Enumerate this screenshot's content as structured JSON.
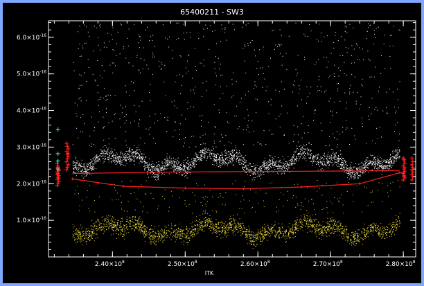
{
  "chart_data": {
    "type": "scatter",
    "title": "65400211 - SW3",
    "xlabel": "ITK",
    "ylabel": "",
    "xlim": [
      231200000.0,
      281700000.0
    ],
    "ylim": [
      0,
      6.45e-16
    ],
    "x_ticks": [
      {
        "value": 240000000.0,
        "mantissa": "2.40",
        "power": "8"
      },
      {
        "value": 250000000.0,
        "mantissa": "2.50",
        "power": "8"
      },
      {
        "value": 260000000.0,
        "mantissa": "2.60",
        "power": "8"
      },
      {
        "value": 270000000.0,
        "mantissa": "2.70",
        "power": "8"
      },
      {
        "value": 280000000.0,
        "mantissa": "2.80",
        "power": "8"
      }
    ],
    "y_ticks": [
      {
        "value": 1e-16,
        "mantissa": "1.0",
        "power": "-16"
      },
      {
        "value": 2e-16,
        "mantissa": "2.0",
        "power": "-16"
      },
      {
        "value": 3e-16,
        "mantissa": "3.0",
        "power": "-16"
      },
      {
        "value": 4e-16,
        "mantissa": "4.0",
        "power": "-16"
      },
      {
        "value": 5e-16,
        "mantissa": "5.0",
        "power": "-16"
      },
      {
        "value": 6e-16,
        "mantissa": "6.0",
        "power": "-16"
      }
    ],
    "colors": {
      "background": "#000000",
      "frame": "#7fa7ff",
      "white_series": "#ffffff",
      "yellow_series": "#f2e23a",
      "red": "#ff2020",
      "cyan": "#40e0d0"
    },
    "x_data_range": [
      234500000.0,
      279500000.0
    ],
    "white_band_center": 2.6e-16,
    "yellow_band_center": 7.5e-17,
    "series": [
      {
        "color": "red",
        "style": "line",
        "x": [
          234500000.0,
          242000000.0,
          250000000.0,
          258000000.0,
          266000000.0,
          274000000.0,
          279500000.0
        ],
        "y": [
          2.28e-16,
          2.3e-16,
          2.32e-16,
          2.33e-16,
          2.34e-16,
          2.35e-16,
          2.36e-16
        ]
      },
      {
        "color": "red",
        "style": "line+plus",
        "x": [
          234500000.0,
          241500000.0,
          250000000.0,
          258000000.0,
          266000000.0,
          274000000.0,
          279500000.0
        ],
        "y": [
          2.13e-16,
          1.93e-16,
          1.88e-16,
          1.86e-16,
          1.91e-16,
          2e-16,
          2.3e-16
        ]
      },
      {
        "color": "red",
        "style": "plus",
        "x": [
          232400000.0,
          232500000.0,
          232600000.0,
          232400000.0,
          232500000.0,
          232600000.0,
          232500000.0,
          232400000.0,
          232600000.0,
          232500000.0,
          232400000.0,
          232600000.0,
          232500000.0,
          232400000.0,
          232600000.0,
          232500000.0
        ],
        "y": [
          2.55e-16,
          2.45e-16,
          2.38e-16,
          2.32e-16,
          2.28e-16,
          2.22e-16,
          2.18e-16,
          2.12e-16,
          2.06e-16,
          2e-16,
          1.95e-16,
          2.35e-16,
          2.42e-16,
          2.26e-16,
          2.15e-16,
          2.48e-16
        ]
      },
      {
        "color": "red",
        "style": "plus",
        "x": [
          233700000.0,
          233800000.0,
          233900000.0,
          233700000.0,
          233800000.0,
          233900000.0,
          233800000.0,
          233700000.0,
          233900000.0,
          233800000.0,
          233700000.0,
          233900000.0
        ],
        "y": [
          3.1e-16,
          3.02e-16,
          2.95e-16,
          2.88e-16,
          2.8e-16,
          2.74e-16,
          2.68e-16,
          2.6e-16,
          2.52e-16,
          2.45e-16,
          2.38e-16,
          2.83e-16
        ]
      },
      {
        "color": "red",
        "style": "plus",
        "x": [
          280000000.0,
          280100000.0,
          280200000.0,
          280000000.0,
          280100000.0,
          280200000.0,
          280000000.0,
          280100000.0,
          280200000.0,
          280000000.0,
          280100000.0,
          280200000.0,
          280000000.0,
          280100000.0
        ],
        "y": [
          2.7e-16,
          2.62e-16,
          2.55e-16,
          2.48e-16,
          2.4e-16,
          2.34e-16,
          2.28e-16,
          2.22e-16,
          2.16e-16,
          2.1e-16,
          2.66e-16,
          2.44e-16,
          2.3e-16,
          2.2e-16
        ]
      },
      {
        "color": "red",
        "style": "plus",
        "x": [
          281200000.0,
          281300000.0,
          281200000.0,
          281300000.0,
          281200000.0,
          281300000.0,
          281200000.0,
          281300000.0,
          281200000.0
        ],
        "y": [
          2.7e-16,
          2.6e-16,
          2.52e-16,
          2.45e-16,
          2.38e-16,
          2.32e-16,
          2.25e-16,
          2.18e-16,
          2.1e-16
        ]
      },
      {
        "color": "cyan",
        "style": "plus",
        "x": [
          232500000.0,
          232500000.0,
          232500000.0,
          232500000.0
        ],
        "y": [
          3.48e-16,
          2.82e-16,
          2.62e-16,
          2.4e-16
        ]
      }
    ]
  }
}
